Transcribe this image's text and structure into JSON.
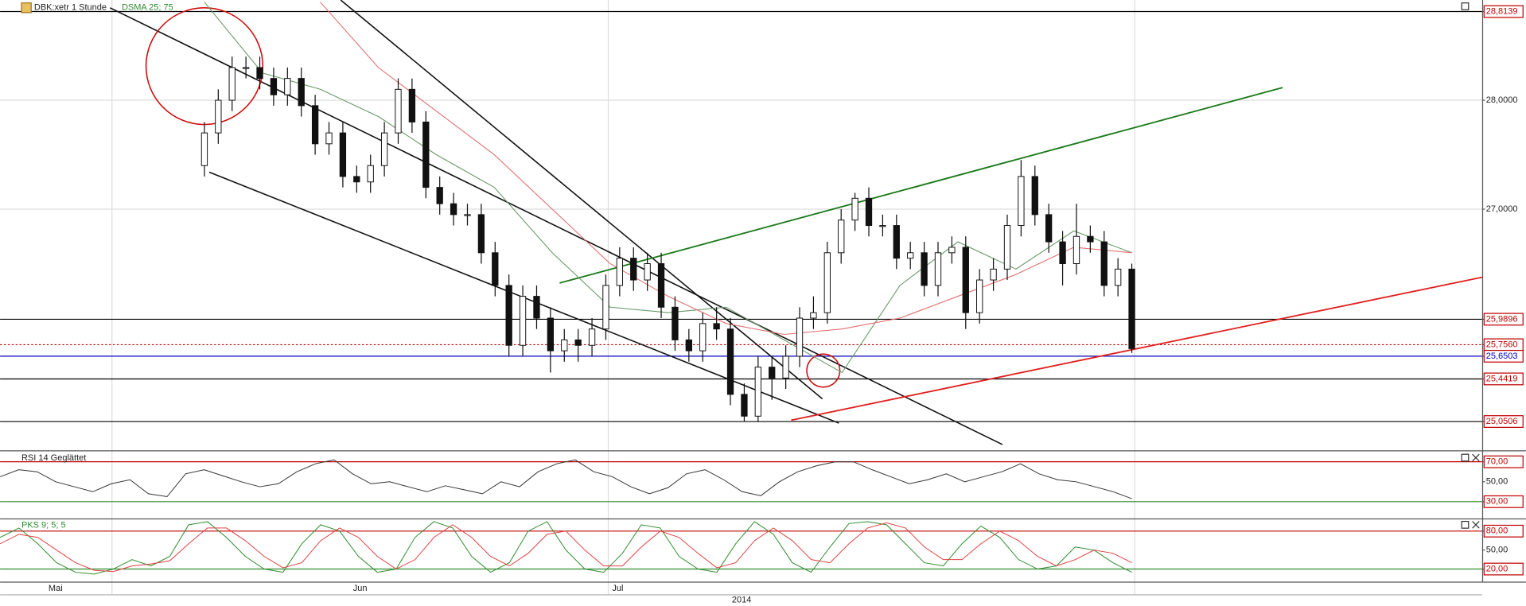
{
  "chart_data": [
    {
      "type": "candlestick",
      "title": "DBK:xetr 1 Stunde",
      "subtitle": "DSMA 25; 75",
      "subtitle_color": "#2e8b2e",
      "open": [
        27.4,
        27.7,
        28.0,
        28.3,
        28.3,
        28.2,
        28.05,
        28.2,
        27.95,
        27.6,
        27.7,
        27.3,
        27.25,
        27.4,
        27.7,
        28.1,
        27.8,
        27.2,
        27.05,
        26.95,
        26.95,
        26.6,
        26.3,
        25.75,
        26.2,
        26.0,
        25.7,
        25.8,
        25.75,
        25.9,
        26.3,
        26.55,
        26.35,
        26.5,
        26.1,
        25.8,
        25.7,
        25.95,
        25.9,
        25.3,
        25.1,
        25.55,
        25.45,
        25.65,
        26.0,
        26.05,
        26.6,
        26.9,
        27.1,
        26.85,
        26.85,
        26.55,
        26.6,
        26.3,
        26.6,
        26.65,
        26.05,
        26.35,
        26.45,
        26.85,
        27.3,
        26.95,
        26.7,
        26.5,
        26.75,
        26.7,
        26.3,
        26.45
      ],
      "high": [
        27.8,
        28.1,
        28.4,
        28.4,
        28.4,
        28.3,
        28.3,
        28.3,
        28.05,
        27.8,
        27.8,
        27.4,
        27.5,
        27.8,
        28.2,
        28.2,
        27.9,
        27.3,
        27.15,
        27.05,
        27.05,
        26.7,
        26.4,
        26.3,
        26.3,
        26.1,
        25.9,
        25.9,
        26.0,
        26.4,
        26.65,
        26.65,
        26.6,
        26.6,
        26.2,
        25.9,
        26.05,
        26.1,
        26.0,
        25.4,
        25.65,
        25.65,
        25.75,
        26.1,
        26.2,
        26.7,
        27.0,
        27.15,
        27.2,
        26.95,
        26.95,
        26.7,
        26.7,
        26.7,
        26.75,
        26.75,
        26.45,
        26.55,
        26.95,
        27.45,
        27.4,
        27.05,
        26.8,
        27.05,
        26.85,
        26.8,
        26.55,
        26.5
      ],
      "low": [
        27.3,
        27.6,
        27.9,
        28.2,
        28.1,
        27.95,
        27.95,
        27.85,
        27.5,
        27.5,
        27.2,
        27.15,
        27.15,
        27.3,
        27.6,
        27.7,
        27.1,
        26.95,
        26.85,
        26.85,
        26.5,
        26.2,
        25.65,
        25.65,
        25.9,
        25.5,
        25.6,
        25.6,
        25.65,
        25.8,
        26.2,
        26.25,
        26.25,
        26.0,
        25.7,
        25.6,
        25.6,
        25.8,
        25.2,
        25.05,
        25.05,
        25.25,
        25.35,
        25.55,
        25.9,
        25.95,
        26.5,
        26.8,
        26.75,
        26.75,
        26.45,
        26.45,
        26.2,
        26.2,
        26.5,
        25.9,
        25.95,
        26.25,
        26.35,
        26.75,
        26.85,
        26.6,
        26.3,
        26.4,
        26.6,
        26.2,
        26.2,
        25.68
      ],
      "close": [
        27.7,
        28.0,
        28.3,
        28.3,
        28.2,
        28.05,
        28.2,
        27.95,
        27.6,
        27.7,
        27.3,
        27.25,
        27.4,
        27.7,
        28.1,
        27.8,
        27.2,
        27.05,
        26.95,
        26.95,
        26.6,
        26.3,
        25.75,
        26.2,
        26.0,
        25.7,
        25.8,
        25.75,
        25.9,
        26.3,
        26.55,
        26.35,
        26.5,
        26.1,
        25.8,
        25.7,
        25.95,
        25.9,
        25.3,
        25.1,
        25.55,
        25.45,
        25.65,
        26.0,
        26.05,
        26.6,
        26.9,
        27.1,
        26.85,
        26.85,
        26.55,
        26.6,
        26.3,
        26.6,
        26.65,
        26.05,
        26.35,
        26.45,
        26.85,
        27.3,
        26.95,
        26.7,
        26.5,
        26.75,
        26.7,
        26.3,
        26.45,
        25.72
      ],
      "overlays": [
        {
          "color": "#6a9a6a",
          "values": [
            28.9,
            28.25,
            28.1,
            27.85,
            27.5,
            27.2,
            26.6,
            26.1,
            26.05,
            26.1,
            25.8,
            25.5,
            26.3,
            26.7,
            26.45,
            26.8,
            26.6
          ]
        },
        {
          "color": "#e07070",
          "values": [
            null,
            null,
            28.9,
            28.3,
            27.9,
            27.5,
            27.0,
            26.5,
            26.2,
            25.95,
            25.85,
            25.9,
            26.0,
            26.2,
            26.4,
            26.65,
            26.6
          ]
        }
      ],
      "ylim": [
        24.786,
        28.92
      ],
      "yticks": [
        {
          "value": 28.8139,
          "label": "28,8139",
          "line_color": "#000000",
          "boxed": true
        },
        {
          "value": 28,
          "label": "28,0000",
          "line_color": "#dddddd",
          "boxed": false
        },
        {
          "value": 27,
          "label": "27,0000",
          "line_color": "#dddddd",
          "boxed": false
        },
        {
          "value": 25.9896,
          "label": "25,9896",
          "line_color": "#000000",
          "boxed": true
        },
        {
          "value": 25.756,
          "label": "25,7560",
          "line_color": "#c00000",
          "dotted": true,
          "boxed": true
        },
        {
          "value": 25.6503,
          "label": "25,6503",
          "line_color": "#0000c0",
          "boxed": true
        },
        {
          "value": 25.4419,
          "label": "25,4419",
          "line_color": "#000000",
          "boxed": true
        },
        {
          "value": 25.0506,
          "label": "25,0506",
          "line_color": "#000000",
          "boxed": true
        }
      ]
    },
    {
      "type": "line",
      "title": "RSI 14 Geglättet",
      "subtitle_color": "#222222",
      "series": [
        {
          "color": "#333333",
          "values": [
            55,
            62,
            60,
            50,
            45,
            40,
            48,
            52,
            38,
            35,
            58,
            62,
            56,
            50,
            45,
            48,
            60,
            68,
            72,
            58,
            48,
            50,
            45,
            40,
            46,
            42,
            38,
            50,
            45,
            60,
            68,
            72,
            60,
            55,
            45,
            38,
            44,
            58,
            62,
            52,
            40,
            36,
            50,
            60,
            66,
            70,
            70,
            62,
            55,
            48,
            52,
            58,
            50,
            55,
            60,
            68,
            58,
            52,
            50,
            45,
            40,
            33
          ]
        }
      ],
      "ylim": [
        20,
        80
      ],
      "yticks": [
        {
          "value": 70,
          "label": "70,00",
          "line_color": "#c00000",
          "boxed": true
        },
        {
          "value": 50,
          "label": "50,00",
          "boxed": false
        },
        {
          "value": 30,
          "label": "30,00",
          "line_color": "#2e8b2e",
          "boxed": true
        }
      ]
    },
    {
      "type": "line",
      "title": "PKS 9; 5; 5",
      "subtitle_color": "#2e8b2e",
      "series": [
        {
          "color": "#2e8b2e",
          "values": [
            70,
            85,
            60,
            30,
            15,
            12,
            20,
            35,
            25,
            40,
            90,
            95,
            70,
            40,
            20,
            15,
            60,
            90,
            80,
            40,
            15,
            20,
            70,
            95,
            85,
            40,
            15,
            30,
            80,
            95,
            50,
            20,
            15,
            45,
            90,
            85,
            40,
            20,
            15,
            60,
            95,
            75,
            30,
            15,
            55,
            92,
            95,
            90,
            60,
            30,
            25,
            60,
            88,
            70,
            35,
            20,
            25,
            55,
            50,
            30,
            15
          ]
        },
        {
          "color": "#e04040",
          "values": [
            60,
            75,
            70,
            50,
            30,
            18,
            16,
            25,
            28,
            33,
            60,
            85,
            85,
            65,
            40,
            22,
            30,
            65,
            85,
            70,
            40,
            20,
            35,
            70,
            90,
            70,
            40,
            25,
            45,
            75,
            80,
            50,
            25,
            25,
            55,
            80,
            70,
            45,
            22,
            30,
            65,
            85,
            65,
            35,
            30,
            60,
            85,
            93,
            85,
            55,
            35,
            35,
            60,
            80,
            65,
            40,
            25,
            35,
            50,
            45,
            30
          ]
        }
      ],
      "ylim": [
        0,
        100
      ],
      "yticks": [
        {
          "value": 80,
          "label": "80,00",
          "line_color": "#c00000",
          "boxed": true
        },
        {
          "value": 50,
          "label": "50,00",
          "boxed": false
        },
        {
          "value": 20,
          "label": "20,00",
          "line_color": "#2e8b2e",
          "boxed": true
        }
      ]
    }
  ],
  "x_axis": {
    "categories": [
      "Mai",
      "Jun",
      "Jul"
    ],
    "year": "2014"
  }
}
